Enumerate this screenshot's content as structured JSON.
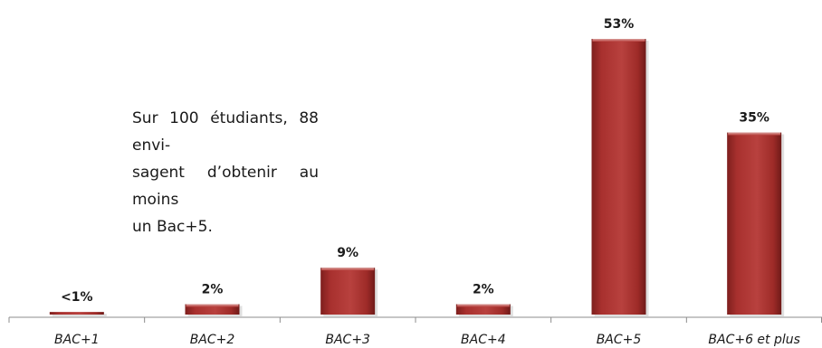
{
  "chart_data": {
    "type": "bar",
    "categories": [
      "BAC+1",
      "BAC+2",
      "BAC+3",
      "BAC+4",
      "BAC+5",
      "BAC+6 et plus"
    ],
    "values": [
      0.5,
      2,
      9,
      2,
      53,
      35
    ],
    "data_labels": [
      "<1%",
      "2%",
      "9%",
      "2%",
      "53%",
      "35%"
    ],
    "title": "",
    "xlabel": "",
    "ylabel": "",
    "ylim": [
      0,
      53
    ],
    "grid": false,
    "legend": "none",
    "bar_color": "#a8302e"
  },
  "annotation": {
    "line1": "Sur 100 étudiants, 88 envi-",
    "line2": "sagent d’obtenir au moins",
    "line3": "un Bac+5."
  }
}
